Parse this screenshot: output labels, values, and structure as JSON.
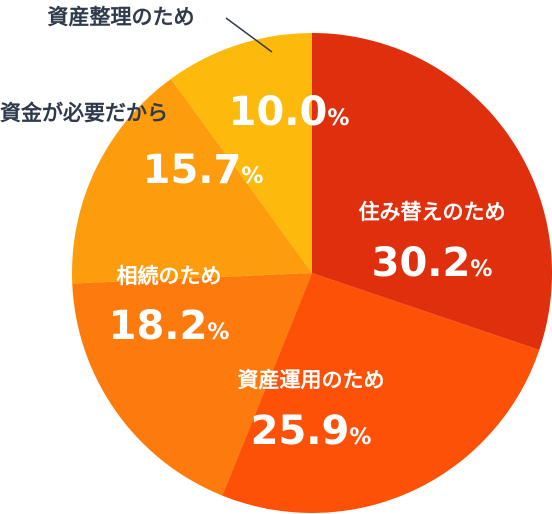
{
  "chart_data": {
    "type": "pie",
    "start": "12 o'clock",
    "direction": "clockwise",
    "unit": "%",
    "slices": [
      {
        "label": "住み替えのため",
        "value": "30.2",
        "color": "#e02f0c"
      },
      {
        "label": "資産運用のため",
        "value": "25.9",
        "color": "#fd5108"
      },
      {
        "label": "相続のため",
        "value": "18.2",
        "color": "#fd7a0c"
      },
      {
        "label": "資金が必要だから",
        "value": "15.7",
        "color": "#fd9c0c"
      },
      {
        "label": "資産整理のため",
        "value": "10.0",
        "color": "#fdb90c"
      }
    ]
  }
}
